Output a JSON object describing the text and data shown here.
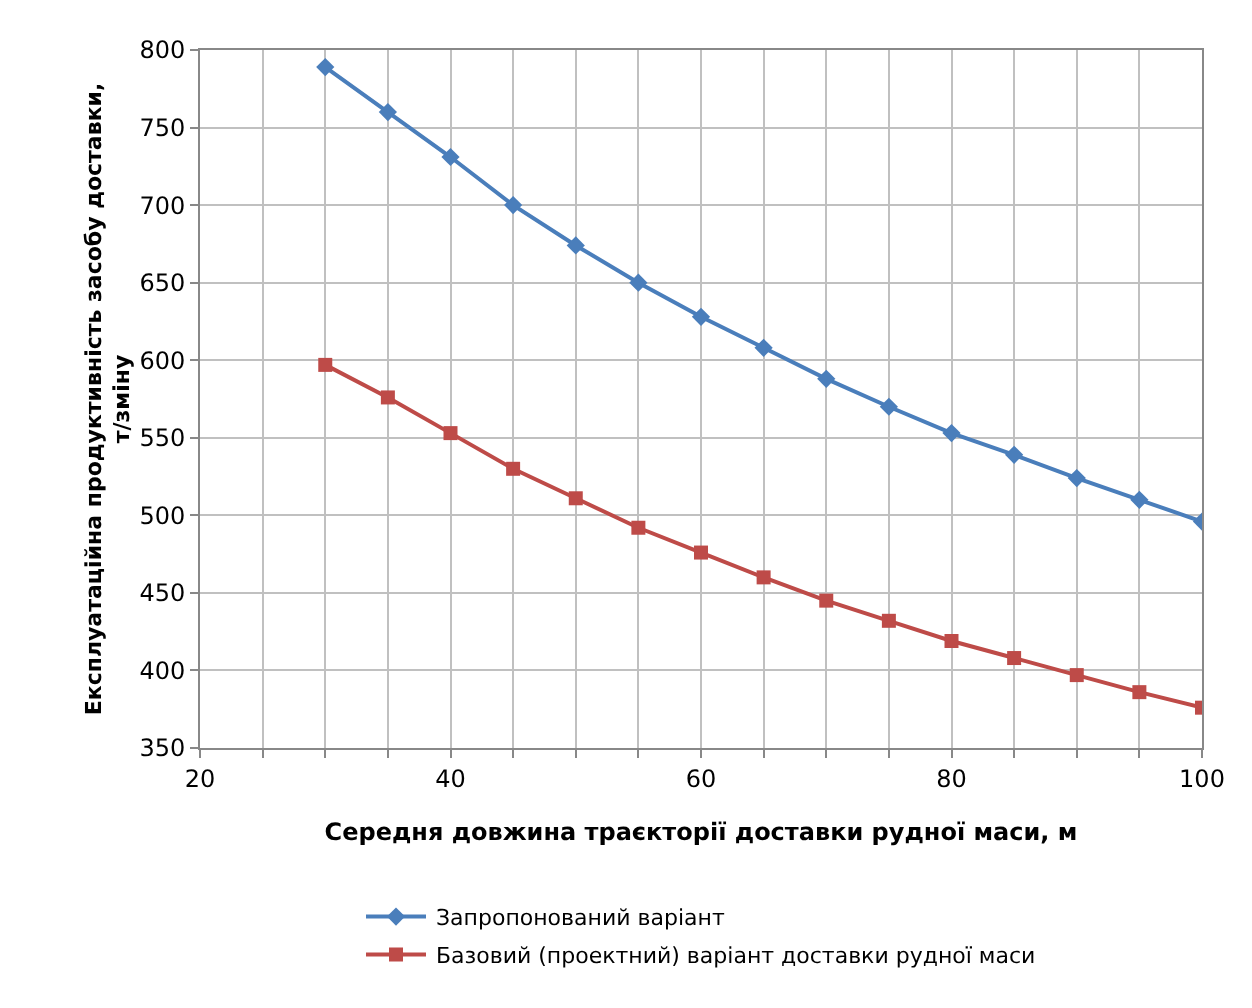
{
  "chart_data": {
    "type": "line",
    "xlabel": "Середня довжина траєкторії доставки рудної маси, м",
    "ylabel": "Експлуатаційна продуктивність засобу доставки, т/зміну",
    "x": [
      30,
      35,
      40,
      45,
      50,
      55,
      60,
      65,
      70,
      75,
      80,
      85,
      90,
      95,
      100
    ],
    "series": [
      {
        "name": "Запропонований варіант",
        "color": "#4a7ebb",
        "marker": "diamond",
        "values": [
          789,
          760,
          731,
          700,
          674,
          650,
          628,
          608,
          588,
          570,
          553,
          539,
          524,
          510,
          496
        ]
      },
      {
        "name": "Базовий (проектний) варіант доставки рудної маси",
        "color": "#be4b48",
        "marker": "square",
        "values": [
          597,
          576,
          553,
          530,
          511,
          492,
          476,
          460,
          445,
          432,
          419,
          408,
          397,
          386,
          376
        ]
      }
    ],
    "xlim": [
      20,
      100
    ],
    "xticks": [
      20,
      {
        "value": 25,
        "label": null
      },
      {
        "value": 30,
        "label": null
      },
      {
        "value": 35,
        "label": null
      },
      40,
      {
        "value": 45,
        "label": null
      },
      {
        "value": 50,
        "label": null
      },
      {
        "value": 55,
        "label": null
      },
      60,
      {
        "value": 65,
        "label": null
      },
      {
        "value": 70,
        "label": null
      },
      {
        "value": 75,
        "label": null
      },
      80,
      {
        "value": 85,
        "label": null
      },
      {
        "value": 90,
        "label": null
      },
      {
        "value": 95,
        "label": null
      },
      100
    ],
    "ylim": [
      350,
      800
    ],
    "yticks": [
      350,
      400,
      450,
      500,
      550,
      600,
      650,
      700,
      750,
      800
    ],
    "grid": true,
    "legend": "bottom",
    "line_style": "solid"
  }
}
